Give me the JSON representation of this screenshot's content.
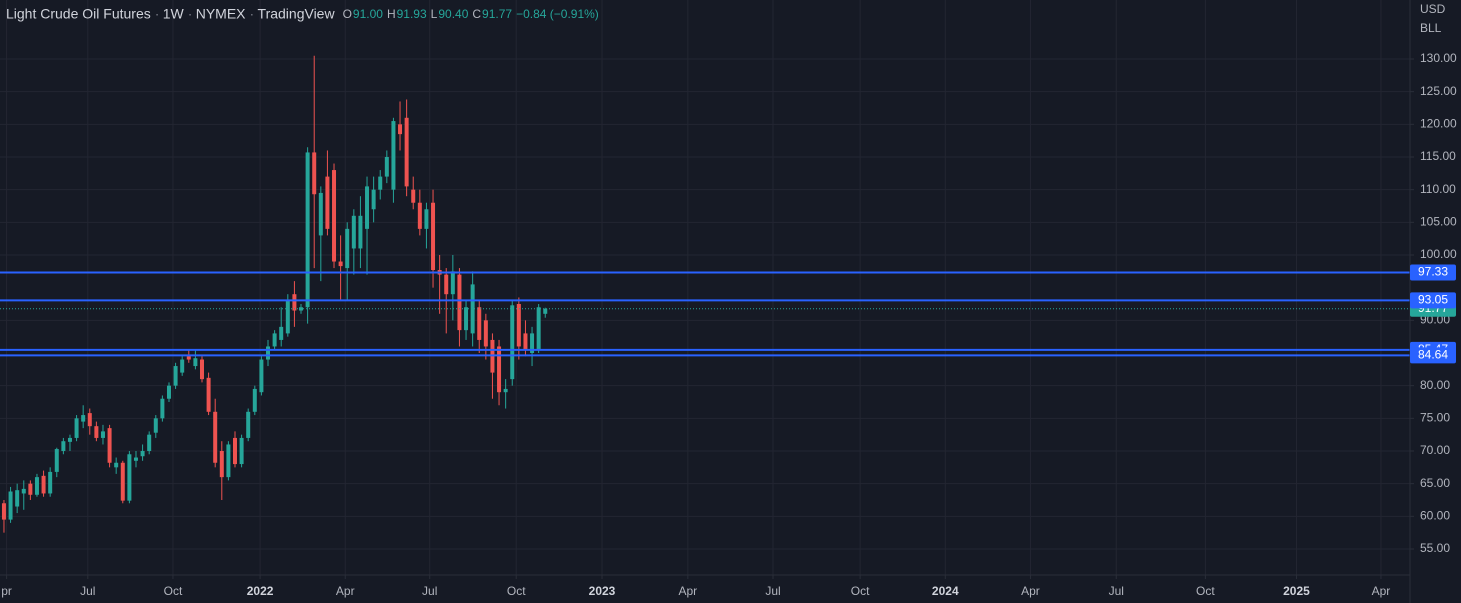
{
  "chart_data": {
    "type": "candlestick",
    "title": "Light Crude Oil Futures",
    "interval": "1W",
    "exchange": "NYMEX",
    "source": "TradingView",
    "ohlc_header": [
      {
        "key": "O",
        "value": "91.00"
      },
      {
        "key": "H",
        "value": "91.93"
      },
      {
        "key": "L",
        "value": "90.40"
      },
      {
        "key": "C",
        "value": "91.77"
      }
    ],
    "change": "−0.84 (−0.91%)",
    "currency": "USD",
    "unit": "BLL",
    "up_color": "#26a69a",
    "down_color": "#ef5350",
    "level_color": "#2962ff",
    "ohlc": [
      [
        62,
        62.5,
        57.5,
        59.5
      ],
      [
        59.5,
        64.5,
        59,
        63.8
      ],
      [
        61.5,
        65,
        60.5,
        64
      ],
      [
        63.5,
        65.5,
        61,
        64.2
      ],
      [
        65,
        65.5,
        62.5,
        63.3
      ],
      [
        63.3,
        66.5,
        63,
        66
      ],
      [
        66.2,
        67,
        63,
        63.5
      ],
      [
        63.5,
        67.5,
        63,
        66.8
      ],
      [
        66.8,
        70.5,
        66,
        70.3
      ],
      [
        70,
        72,
        69.5,
        71.5
      ],
      [
        71.4,
        72.5,
        70,
        72
      ],
      [
        72,
        75.5,
        71.5,
        75
      ],
      [
        74.5,
        77,
        73.5,
        75.5
      ],
      [
        75.8,
        76.5,
        72.5,
        73.8
      ],
      [
        73.8,
        74.5,
        71.5,
        72
      ],
      [
        72,
        74,
        71,
        73
      ],
      [
        73.5,
        74,
        67.5,
        68.2
      ],
      [
        67.5,
        69,
        66.5,
        68.2
      ],
      [
        68.2,
        68.5,
        62,
        62.4
      ],
      [
        62.4,
        70,
        62,
        69.5
      ],
      [
        68.5,
        70,
        67.5,
        69
      ],
      [
        69.2,
        71,
        68.5,
        70
      ],
      [
        70,
        73,
        69.5,
        72.5
      ],
      [
        72.8,
        75.5,
        72,
        75
      ],
      [
        75,
        78.5,
        74.5,
        78
      ],
      [
        78,
        80.5,
        77.5,
        80
      ],
      [
        80,
        83.5,
        79.5,
        83
      ],
      [
        82,
        84.5,
        81.5,
        84
      ],
      [
        84.5,
        85.5,
        83.5,
        84
      ],
      [
        83,
        85.5,
        82.5,
        84.2
      ],
      [
        84,
        84.5,
        80.5,
        81
      ],
      [
        81.2,
        82,
        75.5,
        76
      ],
      [
        76,
        78,
        67.5,
        68.2
      ],
      [
        70,
        71.5,
        62.5,
        66
      ],
      [
        66,
        71.5,
        65.5,
        71
      ],
      [
        72,
        73,
        67.5,
        68
      ],
      [
        68,
        72.5,
        67.5,
        72
      ],
      [
        72,
        76.5,
        71.5,
        76
      ],
      [
        76,
        80,
        75.5,
        79.5
      ],
      [
        79,
        84.5,
        78.5,
        84
      ],
      [
        84,
        87,
        83,
        86
      ],
      [
        86,
        88.5,
        85.5,
        88
      ],
      [
        87,
        92,
        86,
        89
      ],
      [
        88,
        94,
        87.5,
        93
      ],
      [
        94,
        96,
        89,
        91.5
      ],
      [
        91.5,
        92.5,
        91,
        92
      ],
      [
        92,
        116.5,
        89.5,
        115.7
      ],
      [
        115.7,
        130.5,
        98,
        109.3
      ],
      [
        103,
        110.5,
        96,
        109.5
      ],
      [
        112,
        116,
        103,
        104
      ],
      [
        113,
        114,
        98,
        99
      ],
      [
        99,
        103,
        93,
        98.3
      ],
      [
        98,
        105,
        93,
        104
      ],
      [
        101,
        107,
        97,
        106
      ],
      [
        101,
        109,
        98,
        106
      ],
      [
        104,
        112,
        97,
        110.5
      ],
      [
        107,
        112,
        105,
        110
      ],
      [
        110,
        113,
        108.5,
        112
      ],
      [
        112,
        116,
        111,
        115
      ],
      [
        110,
        121,
        108,
        120.5
      ],
      [
        120,
        123.5,
        116,
        118.5
      ],
      [
        121,
        123.8,
        109,
        110.5
      ],
      [
        110,
        112,
        107,
        108
      ],
      [
        108,
        110,
        103,
        104
      ],
      [
        104,
        108,
        101,
        107
      ],
      [
        108,
        110,
        95,
        97.7
      ],
      [
        97.7,
        100,
        91,
        97
      ],
      [
        97,
        98,
        88,
        94
      ],
      [
        94,
        100,
        90,
        97.5
      ],
      [
        97,
        98,
        86,
        88.5
      ],
      [
        88.5,
        93,
        87,
        92
      ],
      [
        88,
        97.5,
        86,
        95.5
      ],
      [
        92,
        93,
        85,
        87
      ],
      [
        90,
        91,
        84,
        86
      ],
      [
        87,
        88,
        78,
        82
      ],
      [
        86,
        87,
        77,
        79
      ],
      [
        79,
        81,
        76.5,
        79.5
      ],
      [
        81,
        93,
        80,
        92.3
      ],
      [
        92.5,
        93.5,
        84,
        86
      ],
      [
        88,
        90,
        84.5,
        85.5
      ],
      [
        85,
        89,
        83,
        88
      ],
      [
        85.5,
        92.5,
        85,
        92
      ],
      [
        91,
        91.93,
        90.4,
        91.77
      ]
    ],
    "levels": [
      97.33,
      93.05,
      85.47,
      84.64
    ],
    "ylim": [
      51.02,
      139.03
    ],
    "yticks": [
      {
        "value": 55,
        "label": "55.00"
      },
      {
        "value": 60,
        "label": "60.00"
      },
      {
        "value": 65,
        "label": "65.00"
      },
      {
        "value": 70,
        "label": "70.00"
      },
      {
        "value": 75,
        "label": "75.00"
      },
      {
        "value": 80,
        "label": "80.00"
      },
      {
        "value": 90,
        "label": "90.00"
      },
      {
        "value": 100,
        "label": "100.00"
      },
      {
        "value": 105,
        "label": "105.00"
      },
      {
        "value": 110,
        "label": "110.00"
      },
      {
        "value": 115,
        "label": "115.00"
      },
      {
        "value": 120,
        "label": "120.00"
      },
      {
        "value": 125,
        "label": "125.00"
      },
      {
        "value": 130,
        "label": "130.00"
      }
    ],
    "xlim": [
      -0.6,
      213
    ],
    "xticks": [
      {
        "value": 0.4,
        "label": "pr"
      },
      {
        "value": 12.7,
        "label": "Jul"
      },
      {
        "value": 25.6,
        "label": "Oct"
      },
      {
        "value": 38.8,
        "label": "2022"
      },
      {
        "value": 51.7,
        "label": "Apr"
      },
      {
        "value": 64.5,
        "label": "Jul"
      },
      {
        "value": 77.6,
        "label": "Oct"
      },
      {
        "value": 90.6,
        "label": "2023"
      },
      {
        "value": 103.6,
        "label": "Apr"
      },
      {
        "value": 116.5,
        "label": "Jul"
      },
      {
        "value": 129.7,
        "label": "Oct"
      },
      {
        "value": 142.6,
        "label": "2024"
      },
      {
        "value": 155.5,
        "label": "Apr"
      },
      {
        "value": 168.5,
        "label": "Jul"
      },
      {
        "value": 182.0,
        "label": "Oct"
      },
      {
        "value": 195.8,
        "label": "2025"
      },
      {
        "value": 208.6,
        "label": "Apr"
      }
    ],
    "grid": true
  }
}
